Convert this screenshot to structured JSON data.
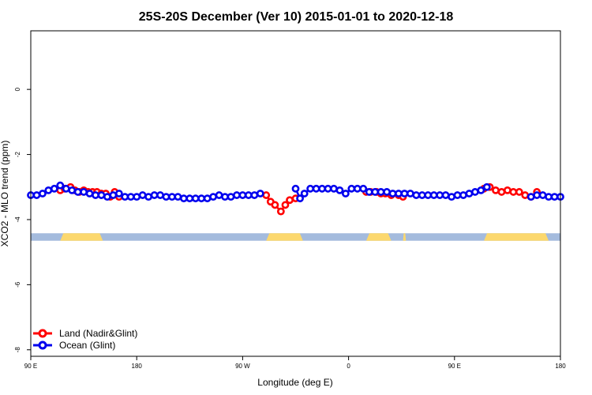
{
  "chart_data": {
    "type": "line",
    "title": "25S-20S December (Ver 10)   2015-01-01 to 2020-12-18",
    "xlabel": "Longitude (deg E)",
    "ylabel": "XCO2 - MLO trend (ppm)",
    "xlim": [
      0,
      360
    ],
    "ylim": [
      -8.2,
      1.8
    ],
    "grid": false,
    "x_ticks": [
      {
        "pos": 0,
        "label": "90 E"
      },
      {
        "pos": 72,
        "label": "180"
      },
      {
        "pos": 144,
        "label": "90 W"
      },
      {
        "pos": 216,
        "label": "0"
      },
      {
        "pos": 288,
        "label": "90 E"
      },
      {
        "pos": 360,
        "label": "180"
      }
    ],
    "y_ticks": [
      {
        "value": 0,
        "label": "0"
      },
      {
        "value": -2,
        "label": "-2"
      },
      {
        "value": -4,
        "label": "-4"
      },
      {
        "value": -6,
        "label": "-6"
      },
      {
        "value": -8,
        "label": "-8"
      }
    ],
    "surface_band": {
      "y_top": -4.42,
      "y_bottom": -4.65,
      "ocean_color": "#a4bbdd",
      "land_color": "#fcd86e",
      "land_segments": [
        [
          20,
          49
        ],
        [
          160,
          185
        ],
        [
          228,
          245
        ],
        [
          253,
          255
        ],
        [
          308,
          352
        ]
      ]
    },
    "legend_position": "bottom-left",
    "series": [
      {
        "name": "Land (Nadir&Glint)",
        "color": "#ff0000",
        "x": [
          20,
          23,
          27,
          30,
          33,
          36,
          39,
          42,
          45,
          48,
          51,
          54,
          57,
          60,
          160,
          163,
          166,
          170,
          173,
          176,
          180,
          228,
          231,
          235,
          238,
          241,
          245,
          250,
          253,
          308,
          312,
          316,
          320,
          324,
          328,
          332,
          336,
          340,
          344
        ],
        "y": [
          -3.1,
          -3.05,
          -3.0,
          -3.1,
          -3.15,
          -3.1,
          -3.15,
          -3.15,
          -3.15,
          -3.2,
          -3.2,
          -3.3,
          -3.15,
          -3.3,
          -3.25,
          -3.45,
          -3.55,
          -3.75,
          -3.55,
          -3.4,
          -3.35,
          -3.15,
          -3.15,
          -3.15,
          -3.2,
          -3.2,
          -3.25,
          -3.25,
          -3.3,
          -3.05,
          -3.0,
          -3.1,
          -3.15,
          -3.1,
          -3.15,
          -3.15,
          -3.25,
          -3.3,
          -3.15
        ]
      },
      {
        "name": "Ocean (Glint)",
        "color": "#0000ee",
        "x": [
          0,
          4,
          8,
          12,
          16,
          20,
          24,
          28,
          32,
          36,
          40,
          44,
          48,
          52,
          56,
          60,
          64,
          68,
          72,
          76,
          80,
          84,
          88,
          92,
          96,
          100,
          104,
          108,
          112,
          116,
          120,
          124,
          128,
          132,
          136,
          140,
          144,
          148,
          152,
          156,
          180,
          183,
          186,
          190,
          194,
          198,
          202,
          206,
          210,
          214,
          218,
          222,
          226,
          230,
          234,
          238,
          242,
          246,
          250,
          254,
          258,
          262,
          266,
          270,
          274,
          278,
          282,
          286,
          290,
          294,
          298,
          302,
          306,
          310,
          340,
          344,
          348,
          352,
          356,
          360
        ],
        "y": [
          -3.25,
          -3.25,
          -3.2,
          -3.1,
          -3.05,
          -2.95,
          -3.05,
          -3.1,
          -3.15,
          -3.15,
          -3.2,
          -3.25,
          -3.25,
          -3.3,
          -3.25,
          -3.2,
          -3.3,
          -3.3,
          -3.3,
          -3.25,
          -3.3,
          -3.25,
          -3.25,
          -3.3,
          -3.3,
          -3.3,
          -3.35,
          -3.35,
          -3.35,
          -3.35,
          -3.35,
          -3.3,
          -3.25,
          -3.3,
          -3.3,
          -3.25,
          -3.25,
          -3.25,
          -3.25,
          -3.2,
          -3.05,
          -3.35,
          -3.2,
          -3.05,
          -3.05,
          -3.05,
          -3.05,
          -3.05,
          -3.1,
          -3.2,
          -3.05,
          -3.05,
          -3.05,
          -3.15,
          -3.15,
          -3.15,
          -3.15,
          -3.2,
          -3.2,
          -3.2,
          -3.2,
          -3.25,
          -3.25,
          -3.25,
          -3.25,
          -3.25,
          -3.25,
          -3.3,
          -3.25,
          -3.25,
          -3.2,
          -3.15,
          -3.1,
          -3.0,
          -3.3,
          -3.25,
          -3.25,
          -3.3,
          -3.3,
          -3.3
        ]
      }
    ]
  }
}
